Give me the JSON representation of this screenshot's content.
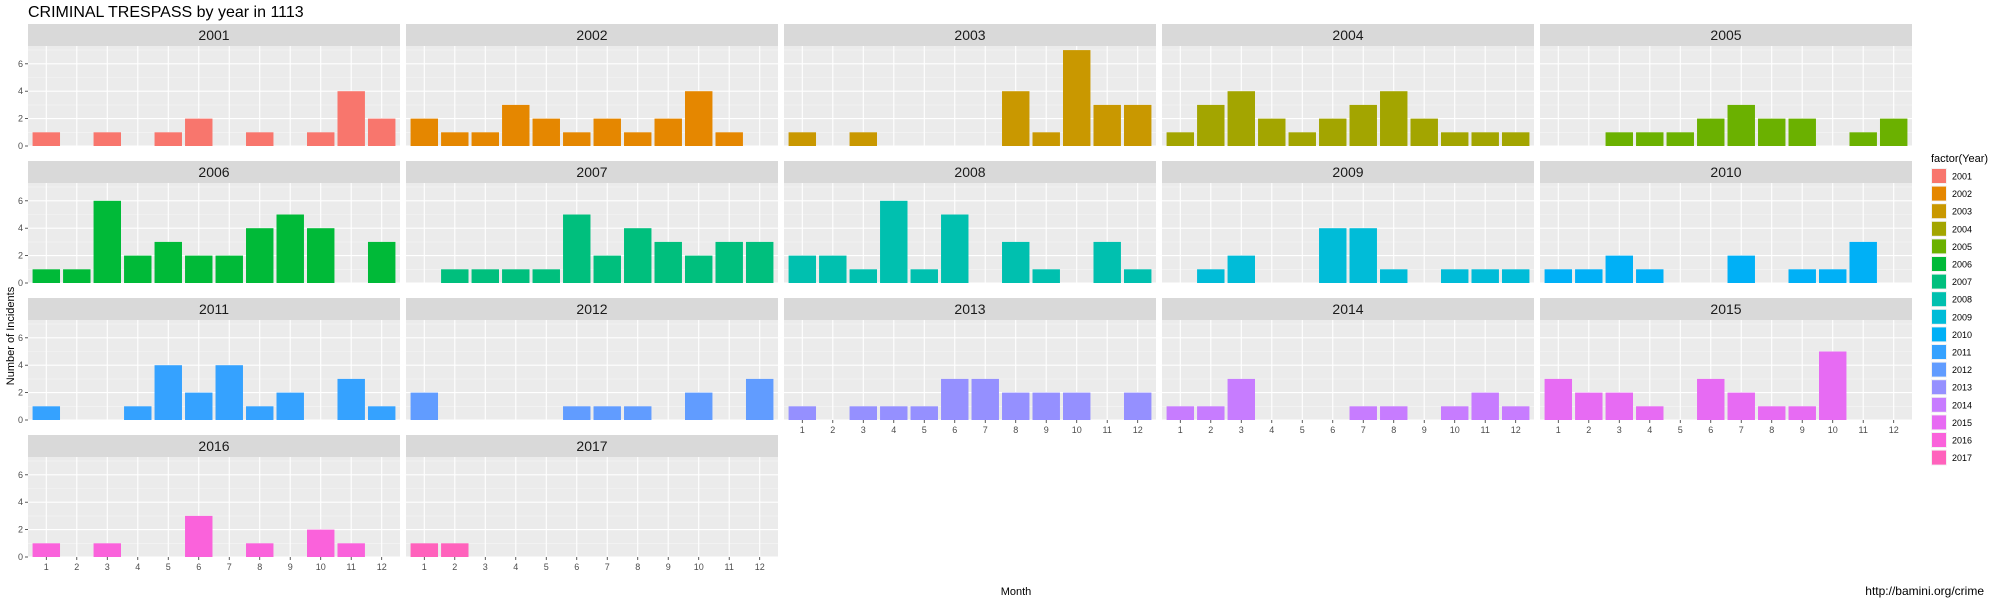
{
  "chart_data": {
    "type": "bar",
    "title": "CRIMINAL TRESPASS by year in 1113",
    "xlabel": "Month",
    "ylabel": "Number of Incidents",
    "ylim": [
      0,
      7.3
    ],
    "y_ticks": [
      0,
      2,
      4,
      6
    ],
    "x_ticks": [
      "1",
      "2",
      "3",
      "4",
      "5",
      "6",
      "7",
      "8",
      "9",
      "10",
      "11",
      "12"
    ],
    "facet_layout": {
      "columns": 5,
      "rows": 4
    },
    "legend": {
      "title": "factor(Year)",
      "placement": "right",
      "entries": [
        "2001",
        "2002",
        "2003",
        "2004",
        "2005",
        "2006",
        "2007",
        "2008",
        "2009",
        "2010",
        "2011",
        "2012",
        "2013",
        "2014",
        "2015",
        "2016",
        "2017"
      ]
    },
    "caption": "http://bamini.org/crime",
    "grid": true,
    "panels": [
      {
        "year": "2001",
        "color": "#F8766D",
        "values": [
          1,
          0,
          1,
          0,
          1,
          2,
          0,
          1,
          0,
          1,
          4,
          2
        ]
      },
      {
        "year": "2002",
        "color": "#E58700",
        "values": [
          2,
          1,
          1,
          3,
          2,
          1,
          2,
          1,
          2,
          4,
          1,
          0
        ]
      },
      {
        "year": "2003",
        "color": "#C99800",
        "values": [
          1,
          0,
          1,
          0,
          0,
          0,
          0,
          4,
          1,
          7,
          3,
          3
        ]
      },
      {
        "year": "2004",
        "color": "#A3A500",
        "values": [
          1,
          3,
          4,
          2,
          1,
          2,
          3,
          4,
          2,
          1,
          1,
          1
        ]
      },
      {
        "year": "2005",
        "color": "#6BB100",
        "values": [
          0,
          0,
          1,
          1,
          1,
          2,
          3,
          2,
          2,
          0,
          1,
          2
        ]
      },
      {
        "year": "2006",
        "color": "#00BA38",
        "values": [
          1,
          1,
          6,
          2,
          3,
          2,
          2,
          4,
          5,
          4,
          0,
          3
        ]
      },
      {
        "year": "2007",
        "color": "#00BF7D",
        "values": [
          0,
          1,
          1,
          1,
          1,
          5,
          2,
          4,
          3,
          2,
          3,
          3
        ]
      },
      {
        "year": "2008",
        "color": "#00C0AF",
        "values": [
          2,
          2,
          1,
          6,
          1,
          5,
          0,
          3,
          1,
          0,
          3,
          1
        ]
      },
      {
        "year": "2009",
        "color": "#00BCD8",
        "values": [
          0,
          1,
          2,
          0,
          0,
          4,
          4,
          1,
          0,
          1,
          1,
          1
        ]
      },
      {
        "year": "2010",
        "color": "#00B0F6",
        "values": [
          1,
          1,
          2,
          1,
          0,
          0,
          2,
          0,
          1,
          1,
          3,
          0
        ]
      },
      {
        "year": "2011",
        "color": "#35A2FF",
        "values": [
          1,
          0,
          0,
          1,
          4,
          2,
          4,
          1,
          2,
          0,
          3,
          1
        ]
      },
      {
        "year": "2012",
        "color": "#619CFF",
        "values": [
          2,
          0,
          0,
          0,
          0,
          1,
          1,
          1,
          0,
          2,
          0,
          3
        ]
      },
      {
        "year": "2013",
        "color": "#9590FF",
        "values": [
          1,
          0,
          1,
          1,
          1,
          3,
          3,
          2,
          2,
          2,
          0,
          2
        ]
      },
      {
        "year": "2014",
        "color": "#C77CFF",
        "values": [
          1,
          1,
          3,
          0,
          0,
          0,
          1,
          1,
          0,
          1,
          2,
          1
        ]
      },
      {
        "year": "2015",
        "color": "#E76BF3",
        "values": [
          3,
          2,
          2,
          1,
          0,
          3,
          2,
          1,
          1,
          5,
          0,
          0
        ]
      },
      {
        "year": "2016",
        "color": "#FA62DB",
        "values": [
          1,
          0,
          1,
          0,
          0,
          3,
          0,
          1,
          0,
          2,
          1,
          0
        ]
      },
      {
        "year": "2017",
        "color": "#FF62BC",
        "values": [
          1,
          1,
          0,
          0,
          0,
          0,
          0,
          0,
          0,
          0,
          0,
          0
        ]
      }
    ]
  }
}
